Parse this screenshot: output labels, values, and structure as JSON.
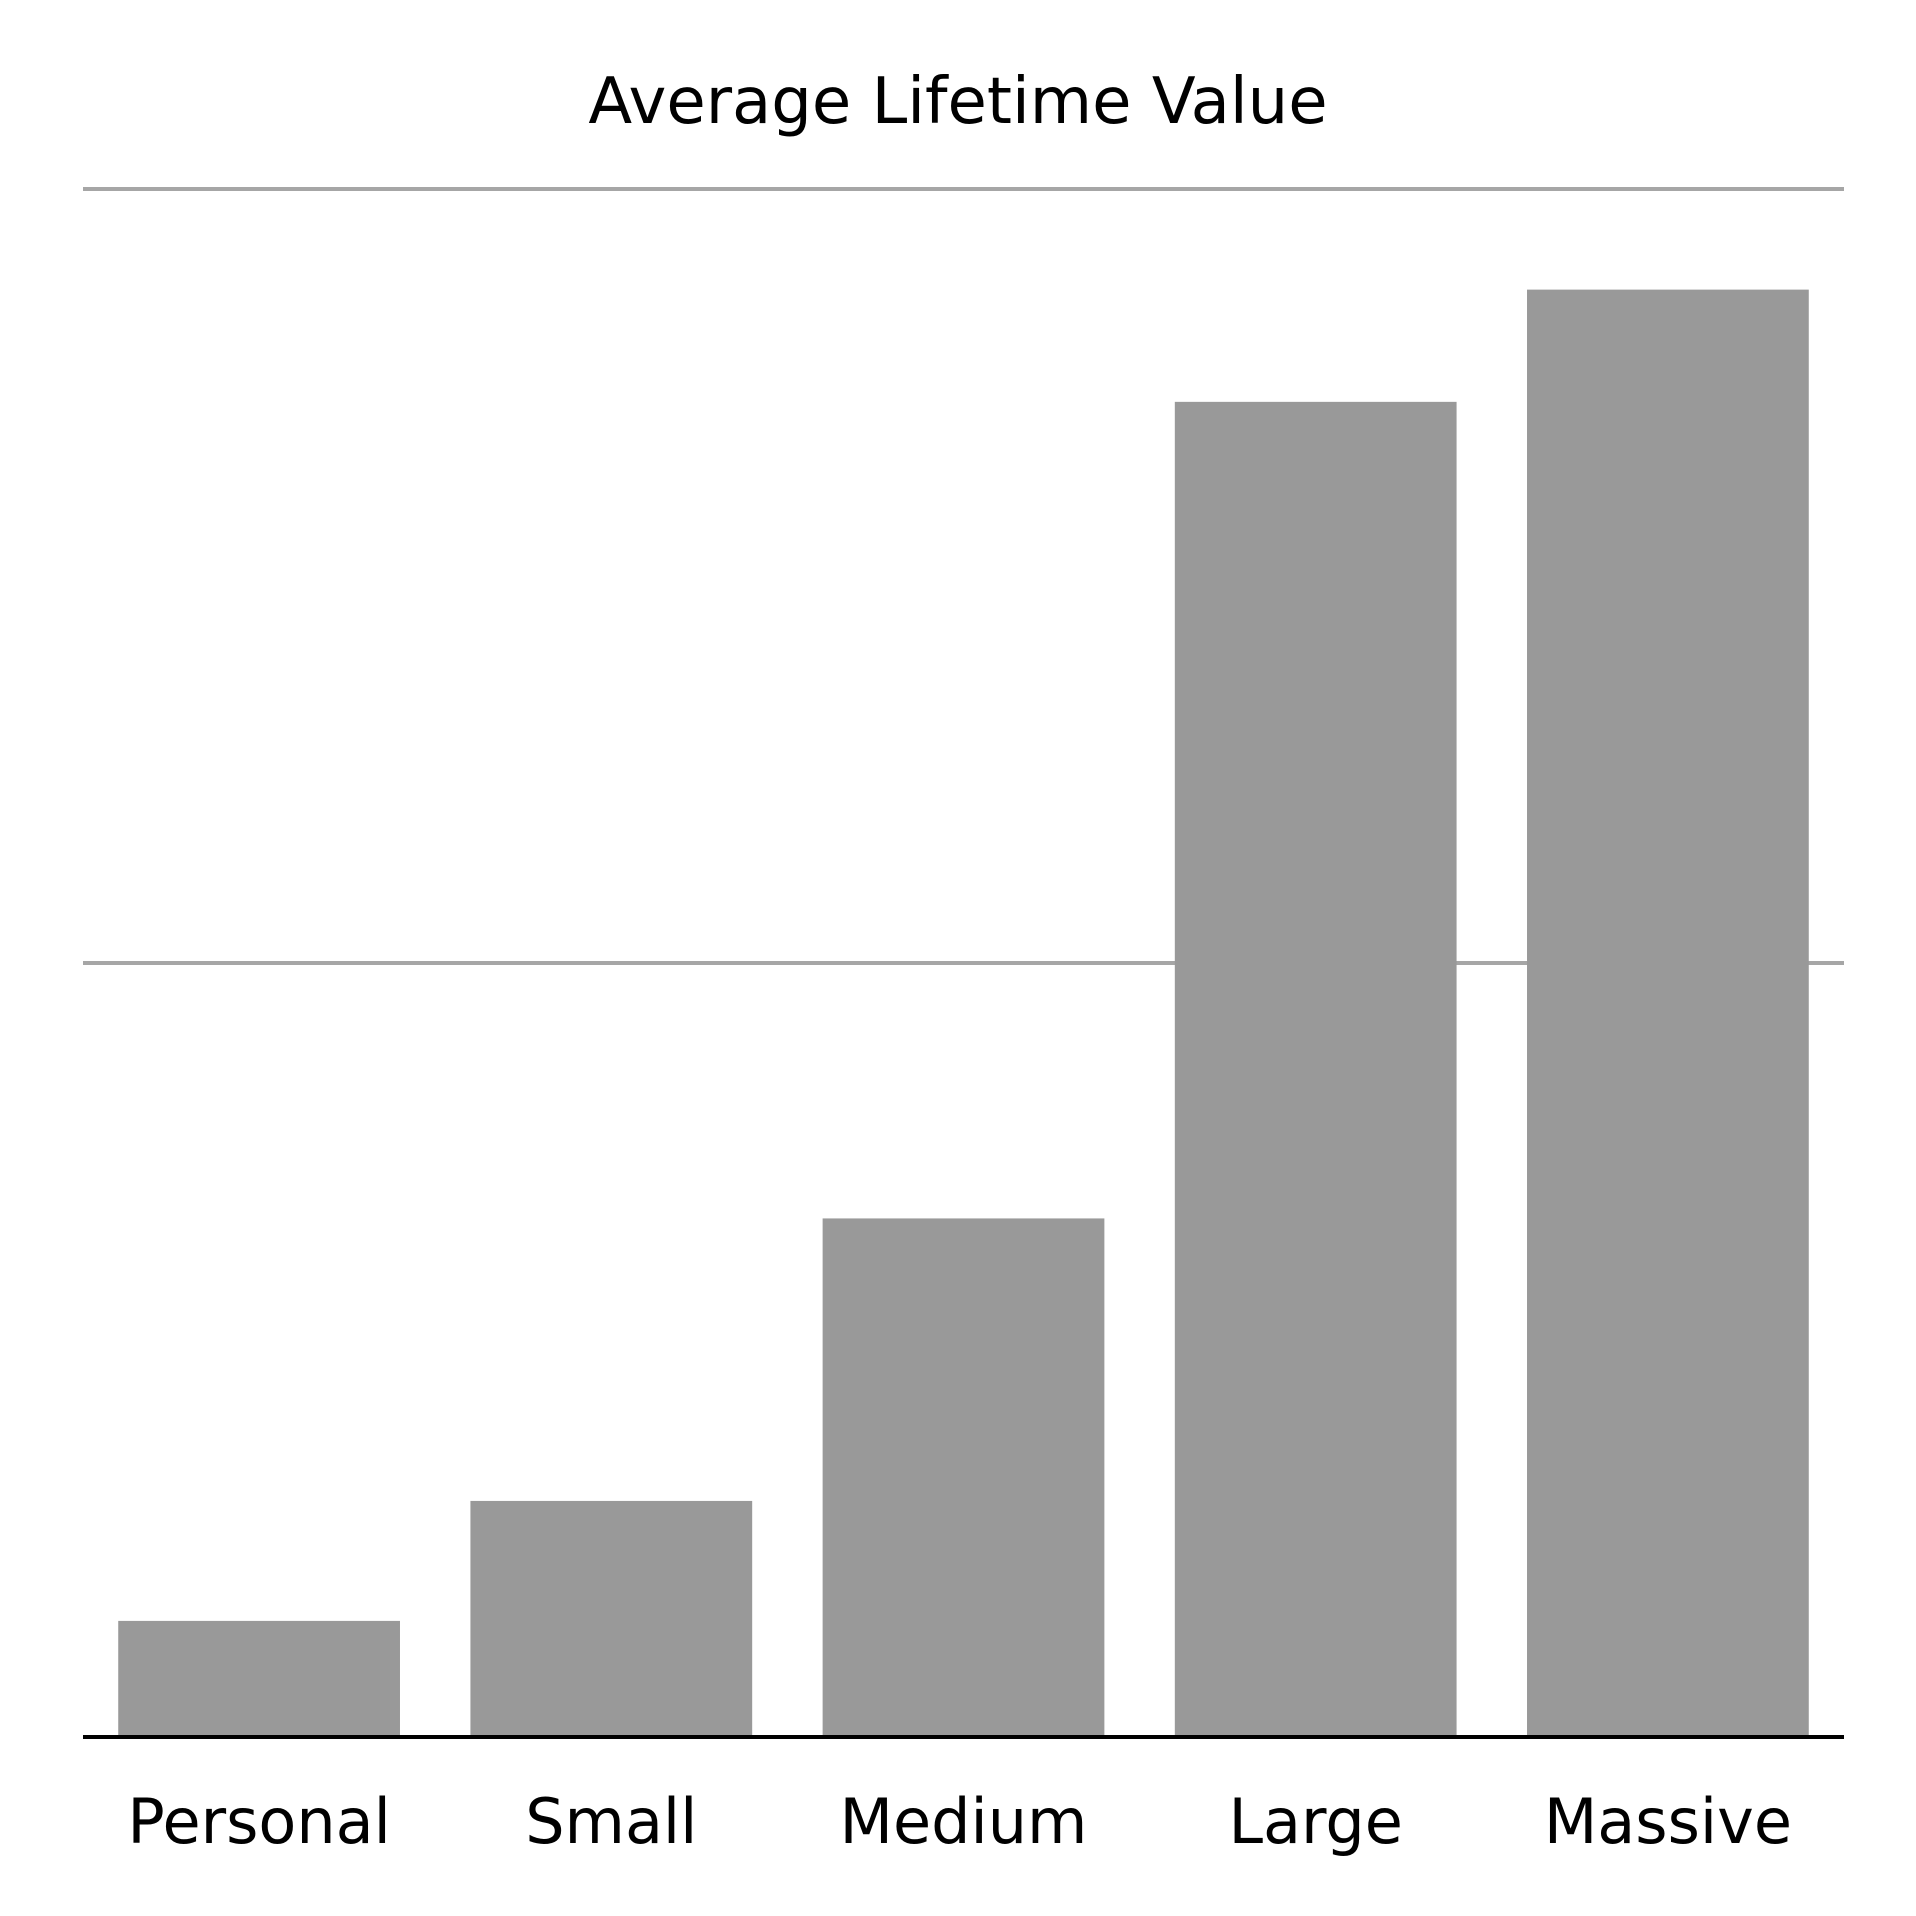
{
  "chart_data": {
    "type": "bar",
    "title": "Average Lifetime Value",
    "categories": [
      "Personal",
      "Small",
      "Medium",
      "Large",
      "Massive"
    ],
    "values": [
      0.15,
      0.305,
      0.67,
      1.725,
      1.87
    ],
    "ylim": [
      0,
      2
    ],
    "yticks": [
      0,
      1,
      2
    ],
    "ytick_labels_shown": false,
    "grid": true,
    "legend": "none",
    "colors": {
      "bar": "#999999",
      "gridline": "#a6a6a6",
      "baseline": "#000000",
      "text": "#000000",
      "background": "#ffffff"
    }
  }
}
